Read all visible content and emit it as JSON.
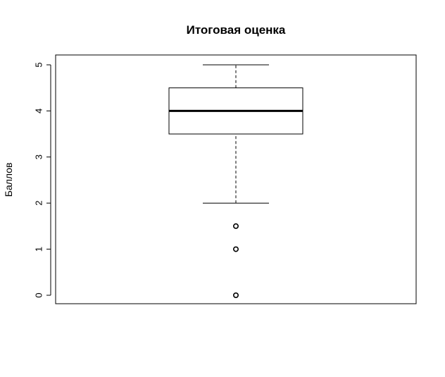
{
  "chart_data": {
    "type": "boxplot",
    "title": "Итоговая оценка",
    "xlabel": "",
    "ylabel": "Баллов",
    "ylim": [
      0,
      5
    ],
    "yticks": [
      "0",
      "1",
      "2",
      "3",
      "4",
      "5"
    ],
    "grid": false,
    "box": {
      "min": 2,
      "q1": 3.5,
      "median": 4,
      "q3": 4.5,
      "max": 5
    },
    "outliers": [
      1.5,
      1,
      0
    ]
  },
  "colors": {
    "stroke": "#000000",
    "background": "#ffffff"
  }
}
